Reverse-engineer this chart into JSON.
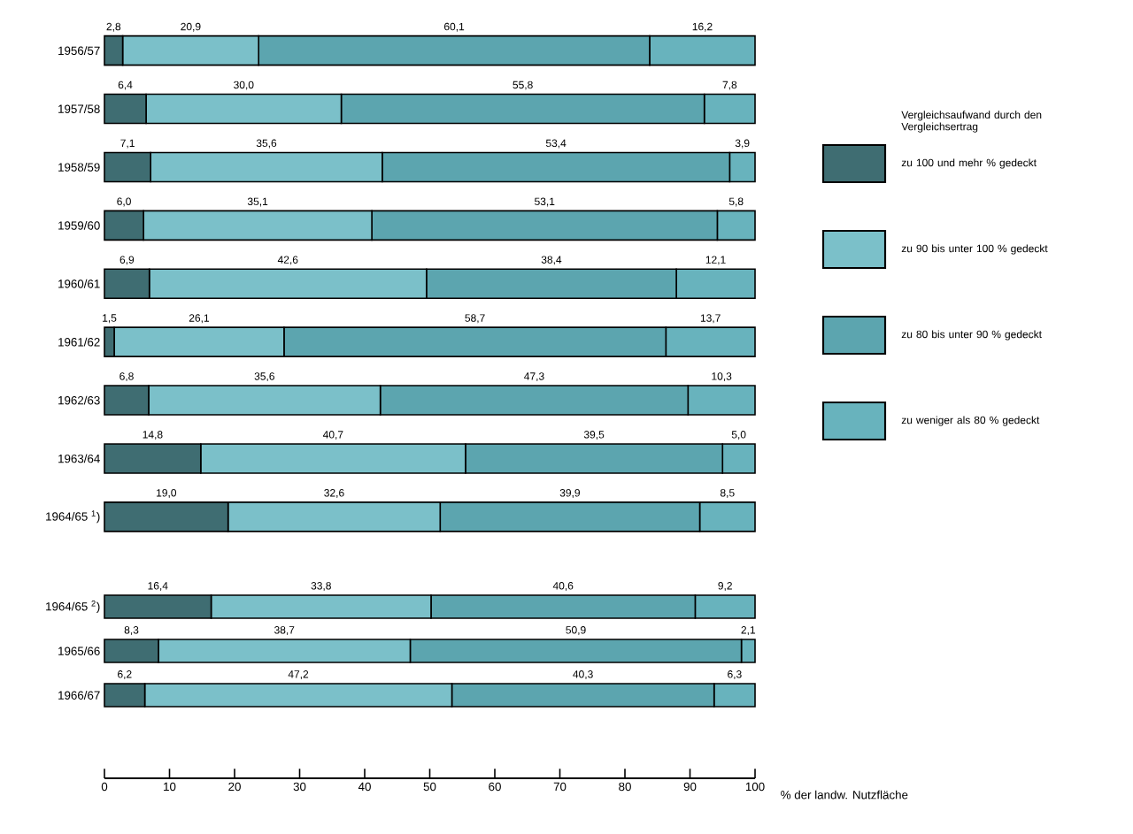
{
  "chart_data": [
    {
      "type": "bar",
      "orientation": "horizontal",
      "stacked": true,
      "legend": "right",
      "legend_title": "Vergleichsaufwand durch den Vergleichsertrag",
      "tick_labels": "y",
      "xlim": [
        0,
        100
      ],
      "categories": [
        "1956/57",
        "1957/58",
        "1958/59",
        "1959/60",
        "1960/61",
        "1961/62",
        "1962/63",
        "1963/64",
        "1964/65 $^{1}$)"
      ],
      "series": [
        {
          "name": "zu 100 und mehr % gedeckt",
          "color": "#3f6d72",
          "values": [
            2.8,
            6.4,
            7.1,
            6.0,
            6.9,
            1.5,
            6.8,
            14.8,
            19.0
          ],
          "value_labels": [
            "2,8",
            "6,4",
            "7,1",
            "6,0",
            "6,9",
            "1,5",
            "6,8",
            "14,8",
            "19,0"
          ]
        },
        {
          "name": "zu 90 bis unter 100 % gedeckt",
          "color": "#7bc0c9",
          "values": [
            20.9,
            30.0,
            35.6,
            35.1,
            42.6,
            26.1,
            35.6,
            40.7,
            32.6
          ],
          "value_labels": [
            "20,9",
            "30,0",
            "35,6",
            "35,1",
            "42,6",
            "26,1",
            "35,6",
            "40,7",
            "32,6"
          ]
        },
        {
          "name": "zu 80 bis unter 90 % gedeckt",
          "color": "#5ca5af",
          "values": [
            60.1,
            55.8,
            53.4,
            53.1,
            38.4,
            58.7,
            47.3,
            39.5,
            39.9
          ],
          "value_labels": [
            "60,1",
            "55,8",
            "53,4",
            "53,1",
            "38,4",
            "58,7",
            "47,3",
            "39,5",
            "39,9"
          ]
        },
        {
          "name": "zu weniger als 80 % gedeckt",
          "color": "#68b3bd",
          "values": [
            16.2,
            7.8,
            3.9,
            5.8,
            12.1,
            13.7,
            10.3,
            5.0,
            8.5
          ],
          "value_labels": [
            "16,2",
            "7,8",
            "3,9",
            "5,8",
            "12,1",
            "13,7",
            "10,3",
            "5,0",
            "8,5"
          ]
        }
      ]
    },
    {
      "type": "bar",
      "orientation": "horizontal",
      "stacked": true,
      "xlabel": "% der landw. Nutzfläche",
      "xlim": [
        0,
        100
      ],
      "xticks": [
        0,
        10,
        20,
        30,
        40,
        50,
        60,
        70,
        80,
        90,
        100
      ],
      "categories": [
        "1964/65 $^{2}$)",
        "1965/66",
        "1966/67"
      ],
      "series": [
        {
          "color": "#3f6d72",
          "values": [
            16.4,
            8.3,
            6.2
          ],
          "value_labels": [
            "16,4",
            "8,3",
            "6,2"
          ]
        },
        {
          "color": "#7bc0c9",
          "values": [
            33.8,
            38.7,
            47.2
          ],
          "value_labels": [
            "33,8",
            "38,7",
            "47,2"
          ]
        },
        {
          "color": "#5ca5af",
          "values": [
            40.6,
            50.9,
            40.3
          ],
          "value_labels": [
            "40,6",
            "50,9",
            "40,3"
          ]
        },
        {
          "color": "#68b3bd",
          "values": [
            9.2,
            2.1,
            6.3
          ],
          "value_labels": [
            "9,2",
            "2,1",
            "6,3"
          ]
        }
      ]
    }
  ]
}
